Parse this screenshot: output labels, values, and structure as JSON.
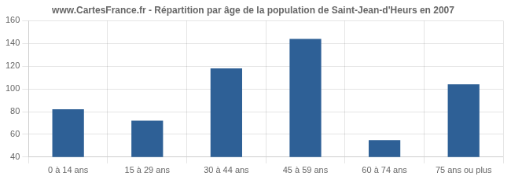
{
  "chart_data": {
    "type": "bar",
    "title": "www.CartesFrance.fr - Répartition par âge de la population de Saint-Jean-d'Heurs en 2007",
    "categories": [
      "0 à 14 ans",
      "15 à 29 ans",
      "30 à 44 ans",
      "45 à 59 ans",
      "60 à 74 ans",
      "75 ans ou plus"
    ],
    "values": [
      82,
      72,
      118,
      144,
      55,
      104
    ],
    "color": "#2e6096",
    "ylim": [
      40,
      160
    ],
    "yticks": [
      40,
      60,
      80,
      100,
      120,
      140,
      160
    ],
    "grid": true
  }
}
